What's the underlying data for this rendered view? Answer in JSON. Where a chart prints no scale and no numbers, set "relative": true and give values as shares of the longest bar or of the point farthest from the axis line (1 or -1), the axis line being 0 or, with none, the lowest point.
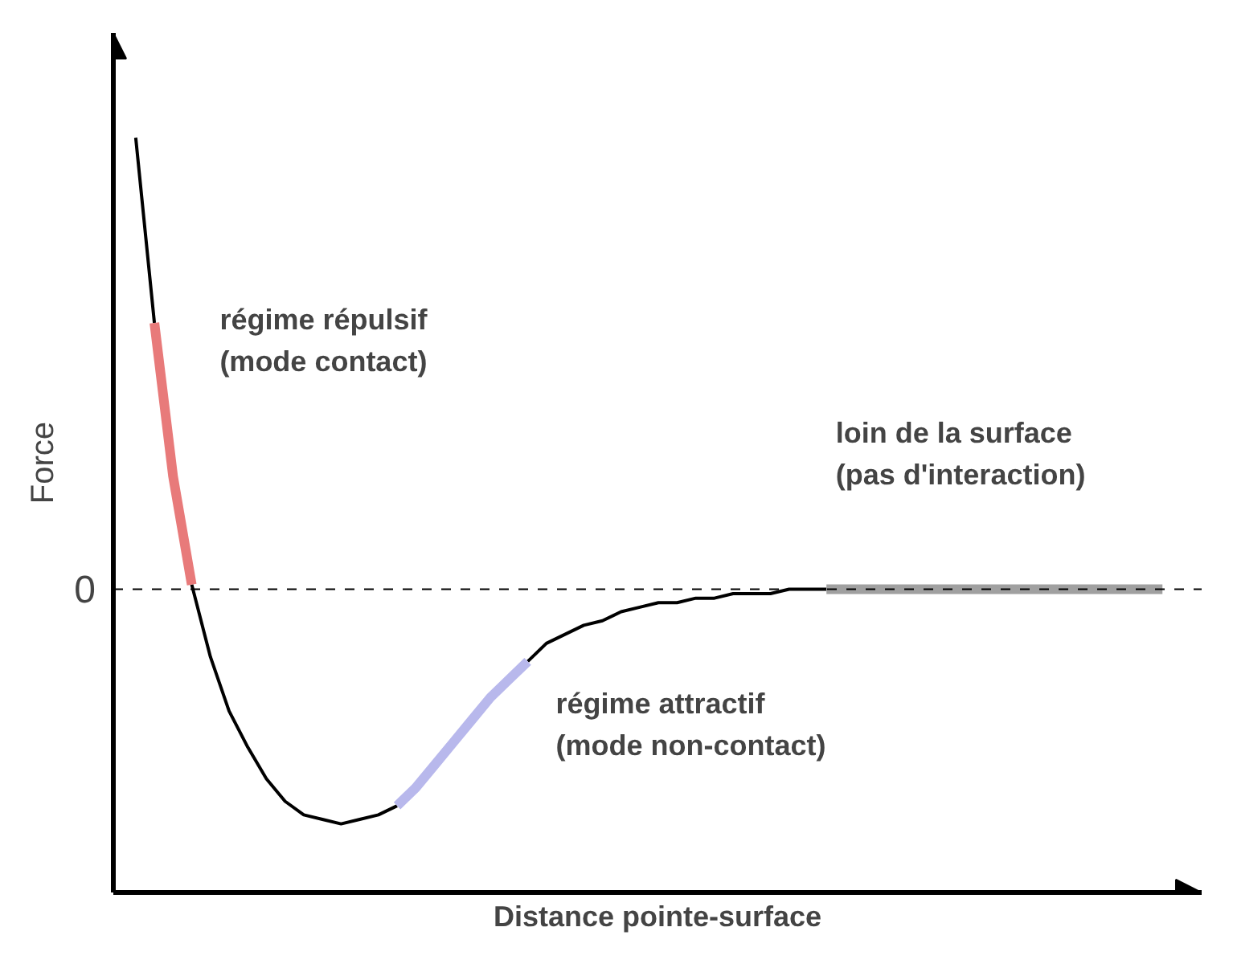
{
  "chart_data": {
    "type": "line",
    "relative": true,
    "xlabel": "Distance pointe-surface",
    "ylabel": "Force",
    "categories": [
      null,
      null,
      null,
      null,
      null,
      null,
      null,
      null,
      null,
      null,
      null,
      null,
      null,
      null,
      null,
      null,
      null,
      null,
      null,
      null,
      null,
      null,
      null,
      null,
      null,
      null,
      null,
      null,
      null,
      null,
      null,
      null,
      null,
      null,
      null,
      null,
      null,
      null,
      null,
      null,
      null,
      null,
      null,
      null,
      null,
      null,
      null,
      null,
      null,
      null,
      null,
      null,
      null,
      null,
      null,
      null
    ],
    "series": [
      {
        "color": "#000000",
        "values": [
          1.0,
          0.59,
          null,
          0.01,
          -0.15,
          -0.27,
          -0.35,
          -0.42,
          -0.47,
          -0.5,
          -0.51,
          -0.52,
          -0.51,
          -0.5,
          -0.48,
          null,
          null,
          null,
          null,
          null,
          null,
          -0.16,
          -0.12,
          -0.1,
          -0.08,
          -0.07,
          -0.05,
          -0.04,
          -0.03,
          -0.03,
          -0.02,
          -0.02,
          -0.01,
          -0.01,
          -0.01,
          0,
          0,
          0,
          null,
          null,
          null,
          null,
          null,
          null,
          null,
          null,
          null,
          null,
          null,
          null,
          null,
          null,
          null,
          null,
          null,
          null
        ]
      },
      {
        "color": "#e87a7a",
        "values": [
          null,
          0.59,
          0.25,
          0.01,
          null,
          null,
          null,
          null,
          null,
          null,
          null,
          null,
          null,
          null,
          null,
          null,
          null,
          null,
          null,
          null,
          null,
          null,
          null,
          null,
          null,
          null,
          null,
          null,
          null,
          null,
          null,
          null,
          null,
          null,
          null,
          null,
          null,
          null,
          null,
          null,
          null,
          null,
          null,
          null,
          null,
          null,
          null,
          null,
          null,
          null,
          null,
          null,
          null,
          null,
          null,
          null
        ]
      },
      {
        "color": "#b8b8ec",
        "values": [
          null,
          null,
          null,
          null,
          null,
          null,
          null,
          null,
          null,
          null,
          null,
          null,
          null,
          null,
          -0.48,
          -0.44,
          -0.39,
          -0.34,
          -0.29,
          -0.24,
          -0.2,
          -0.16,
          null,
          null,
          null,
          null,
          null,
          null,
          null,
          null,
          null,
          null,
          null,
          null,
          null,
          null,
          null,
          null,
          null,
          null,
          null,
          null,
          null,
          null,
          null,
          null,
          null,
          null,
          null,
          null,
          null,
          null,
          null,
          null,
          null,
          null
        ]
      },
      {
        "color": "#a0a0a0",
        "values": [
          null,
          null,
          null,
          null,
          null,
          null,
          null,
          null,
          null,
          null,
          null,
          null,
          null,
          null,
          null,
          null,
          null,
          null,
          null,
          null,
          null,
          null,
          null,
          null,
          null,
          null,
          null,
          null,
          null,
          null,
          null,
          null,
          null,
          null,
          null,
          null,
          null,
          0,
          0,
          0,
          0,
          0,
          0,
          0,
          0,
          0,
          0,
          0,
          0,
          0,
          0,
          0,
          0,
          0,
          0,
          0
        ]
      }
    ],
    "ref_lines": [
      {
        "axis": "y",
        "value": 0,
        "label": "0",
        "line_style": "dashed",
        "color": "#000000"
      }
    ],
    "annotations": [
      "régime répulsif\n(mode contact)",
      "régime attractif\n(mode non-contact)",
      "loin de la surface\n(pas d'interaction)"
    ],
    "grid": false,
    "marker": "none",
    "line_style": "solid"
  }
}
